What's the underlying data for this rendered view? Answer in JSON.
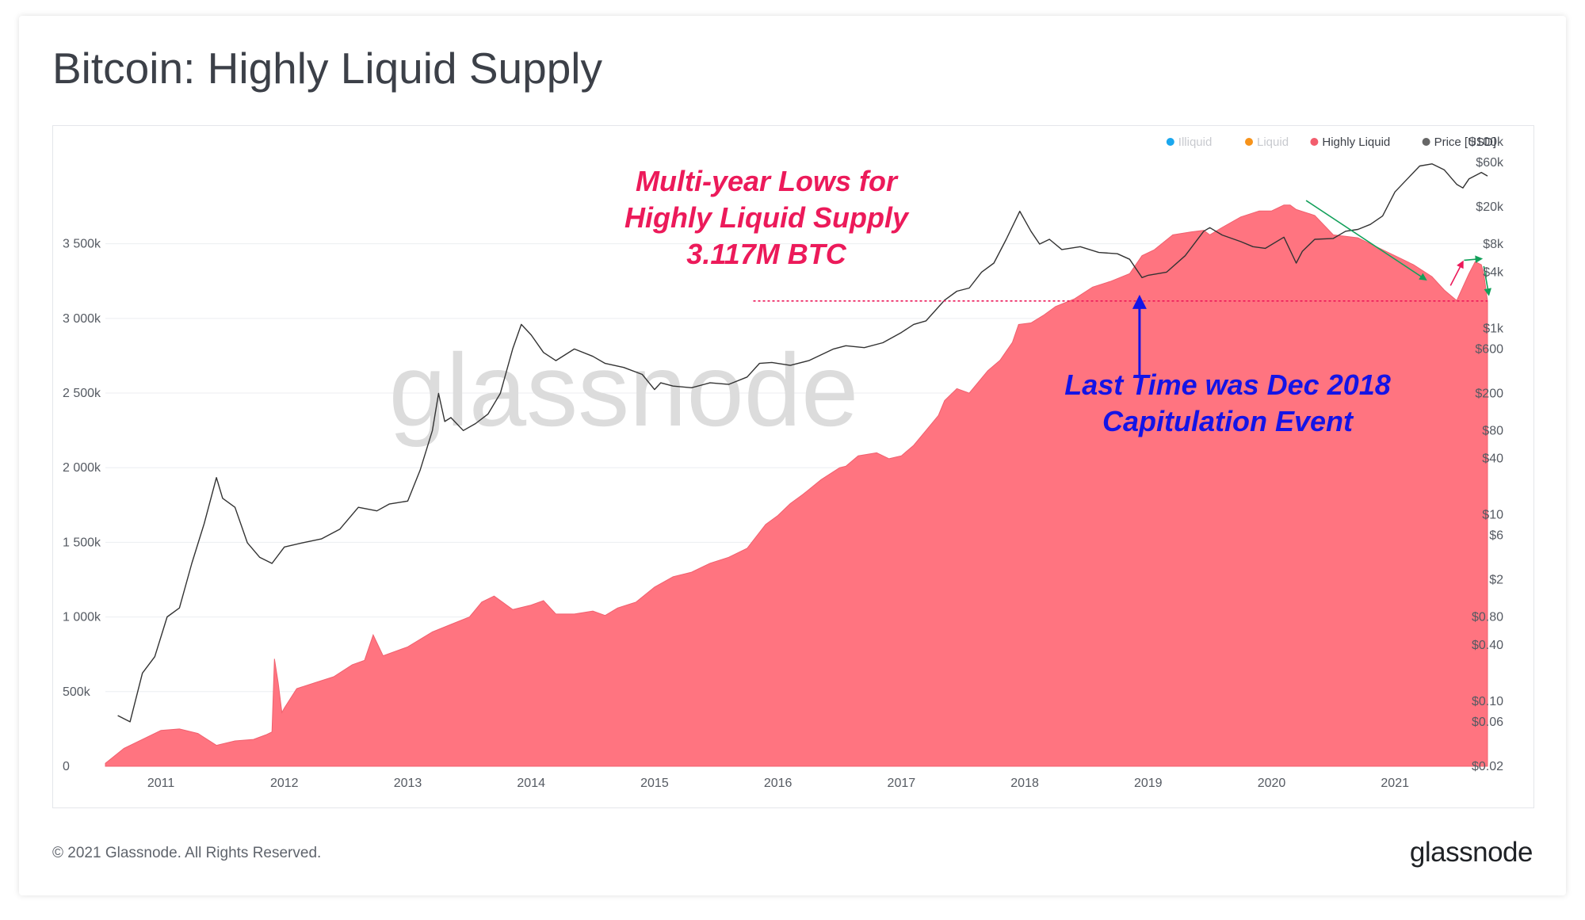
{
  "page": {
    "title": "Bitcoin: Highly Liquid Supply",
    "footer": "© 2021 Glassnode. All Rights Reserved.",
    "brand": "glassnode",
    "watermark": "glassnode"
  },
  "chart_data": {
    "type": "area",
    "title": "Bitcoin: Highly Liquid Supply",
    "x_ticks": [
      "2011",
      "2012",
      "2013",
      "2014",
      "2015",
      "2016",
      "2017",
      "2018",
      "2019",
      "2020",
      "2021"
    ],
    "xlim": [
      2010.55,
      2021.75
    ],
    "y_left": {
      "ticks": [
        0,
        500,
        1000,
        1500,
        2000,
        2500,
        3000,
        3500
      ],
      "tick_labels": [
        "0",
        "500k",
        "1 000k",
        "1 500k",
        "2 000k",
        "2 500k",
        "3 000k",
        "3 500k"
      ],
      "ylim": [
        0,
        4130
      ],
      "unit": "k BTC"
    },
    "y_right": {
      "scale": "log",
      "ticks": [
        0.02,
        0.06,
        0.1,
        0.4,
        0.8,
        2,
        6,
        10,
        40,
        80,
        200,
        600,
        1000,
        4000,
        8000,
        20000,
        60000,
        100000
      ],
      "tick_labels": [
        "$0.02",
        "$0.06",
        "$0.10",
        "$0.40",
        "$0.80",
        "$2",
        "$6",
        "$10",
        "$40",
        "$80",
        "$200",
        "$600",
        "$1k",
        "$4k",
        "$8k",
        "$20k",
        "$60k",
        "$100k"
      ],
      "ylim": [
        0.02,
        100000
      ]
    },
    "legend": {
      "placement": "top-right",
      "items": [
        {
          "label": "Illiquid",
          "color": "#1aa7ee",
          "active": false
        },
        {
          "label": "Liquid",
          "color": "#f7931a",
          "active": false
        },
        {
          "label": "Highly Liquid",
          "color": "#f25d6d",
          "active": true
        },
        {
          "label": "Price [USD]",
          "color": "#666666",
          "active": true
        }
      ]
    },
    "series": [
      {
        "name": "Highly Liquid",
        "color": "#ff7480",
        "x": [
          2010.55,
          2010.7,
          2010.9,
          2011.0,
          2011.15,
          2011.3,
          2011.45,
          2011.6,
          2011.75,
          2011.85,
          2011.9,
          2011.92,
          2011.95,
          2011.98,
          2012.0,
          2012.1,
          2012.25,
          2012.4,
          2012.55,
          2012.65,
          2012.72,
          2012.8,
          2013.0,
          2013.2,
          2013.35,
          2013.5,
          2013.6,
          2013.7,
          2013.85,
          2014.0,
          2014.1,
          2014.2,
          2014.35,
          2014.5,
          2014.6,
          2014.7,
          2014.85,
          2015.0,
          2015.15,
          2015.3,
          2015.45,
          2015.6,
          2015.75,
          2015.9,
          2016.0,
          2016.1,
          2016.2,
          2016.35,
          2016.5,
          2016.55,
          2016.65,
          2016.8,
          2016.9,
          2017.0,
          2017.1,
          2017.2,
          2017.3,
          2017.35,
          2017.45,
          2017.55,
          2017.7,
          2017.8,
          2017.9,
          2017.95,
          2018.05,
          2018.15,
          2018.25,
          2018.4,
          2018.55,
          2018.7,
          2018.85,
          2018.95,
          2019.05,
          2019.2,
          2019.35,
          2019.45,
          2019.5,
          2019.6,
          2019.75,
          2019.9,
          2020.0,
          2020.1,
          2020.15,
          2020.2,
          2020.35,
          2020.5,
          2020.7,
          2020.85,
          2021.0,
          2021.15,
          2021.3,
          2021.4,
          2021.5,
          2021.6,
          2021.65,
          2021.7,
          2021.72,
          2021.75
        ],
        "values": [
          20,
          120,
          200,
          240,
          250,
          220,
          140,
          170,
          180,
          210,
          230,
          720,
          560,
          360,
          390,
          520,
          560,
          600,
          680,
          710,
          880,
          740,
          800,
          900,
          950,
          1000,
          1100,
          1140,
          1050,
          1080,
          1110,
          1020,
          1020,
          1040,
          1010,
          1060,
          1100,
          1200,
          1270,
          1300,
          1360,
          1400,
          1460,
          1620,
          1680,
          1760,
          1820,
          1920,
          2000,
          2010,
          2080,
          2100,
          2060,
          2080,
          2150,
          2250,
          2350,
          2450,
          2530,
          2500,
          2650,
          2720,
          2840,
          2960,
          2970,
          3020,
          3080,
          3130,
          3210,
          3250,
          3300,
          3420,
          3460,
          3560,
          3580,
          3590,
          3560,
          3610,
          3680,
          3720,
          3720,
          3760,
          3760,
          3730,
          3690,
          3560,
          3540,
          3480,
          3420,
          3360,
          3280,
          3190,
          3120,
          3300,
          3380,
          3360,
          3300,
          3117
        ]
      },
      {
        "name": "Price [USD]",
        "color": "#333333",
        "x": [
          2010.65,
          2010.75,
          2010.85,
          2010.95,
          2011.05,
          2011.15,
          2011.25,
          2011.35,
          2011.45,
          2011.5,
          2011.6,
          2011.7,
          2011.8,
          2011.9,
          2012.0,
          2012.15,
          2012.3,
          2012.45,
          2012.6,
          2012.75,
          2012.85,
          2013.0,
          2013.1,
          2013.2,
          2013.25,
          2013.3,
          2013.35,
          2013.45,
          2013.55,
          2013.65,
          2013.75,
          2013.85,
          2013.92,
          2014.0,
          2014.1,
          2014.2,
          2014.35,
          2014.5,
          2014.6,
          2014.75,
          2014.9,
          2015.0,
          2015.05,
          2015.15,
          2015.3,
          2015.45,
          2015.6,
          2015.75,
          2015.85,
          2015.95,
          2016.1,
          2016.25,
          2016.45,
          2016.55,
          2016.7,
          2016.85,
          2017.0,
          2017.1,
          2017.2,
          2017.35,
          2017.45,
          2017.55,
          2017.65,
          2017.75,
          2017.85,
          2017.92,
          2017.96,
          2018.05,
          2018.12,
          2018.2,
          2018.3,
          2018.45,
          2018.6,
          2018.75,
          2018.85,
          2018.95,
          2019.0,
          2019.15,
          2019.3,
          2019.45,
          2019.5,
          2019.6,
          2019.75,
          2019.85,
          2019.95,
          2020.1,
          2020.2,
          2020.25,
          2020.35,
          2020.5,
          2020.6,
          2020.7,
          2020.8,
          2020.9,
          2021.0,
          2021.1,
          2021.2,
          2021.3,
          2021.4,
          2021.5,
          2021.55,
          2021.6,
          2021.7,
          2021.75
        ],
        "values": [
          0.07,
          0.06,
          0.2,
          0.3,
          0.8,
          1.0,
          3.0,
          8.0,
          25,
          15,
          12,
          5,
          3.5,
          3.0,
          4.5,
          5.0,
          5.5,
          7.0,
          12,
          11,
          13,
          14,
          30,
          80,
          200,
          100,
          110,
          80,
          95,
          120,
          200,
          600,
          1100,
          850,
          550,
          450,
          600,
          500,
          420,
          380,
          320,
          220,
          260,
          240,
          230,
          260,
          250,
          300,
          420,
          430,
          400,
          450,
          600,
          650,
          620,
          700,
          900,
          1100,
          1200,
          2000,
          2500,
          2700,
          4000,
          5000,
          9000,
          14000,
          18000,
          11000,
          8000,
          9000,
          7000,
          7500,
          6500,
          6300,
          5500,
          3500,
          3700,
          4000,
          6000,
          11000,
          12000,
          10000,
          8500,
          7500,
          7200,
          9500,
          5000,
          6700,
          9000,
          9200,
          11000,
          11500,
          13000,
          16000,
          29000,
          40000,
          55000,
          58000,
          50000,
          35000,
          32000,
          40000,
          47000,
          43000
        ]
      }
    ],
    "annotations": [
      {
        "lines": [
          "Multi-year Lows for",
          "Highly Liquid Supply",
          "3.117M BTC"
        ],
        "color": "#ec1a5a"
      },
      {
        "lines": [
          "Last Time was Dec 2018",
          "Capitulation Event"
        ],
        "color": "#1414e6"
      }
    ],
    "reference_line": {
      "value": 3117,
      "from_x": 2015.8,
      "to_x": 2021.75
    }
  }
}
